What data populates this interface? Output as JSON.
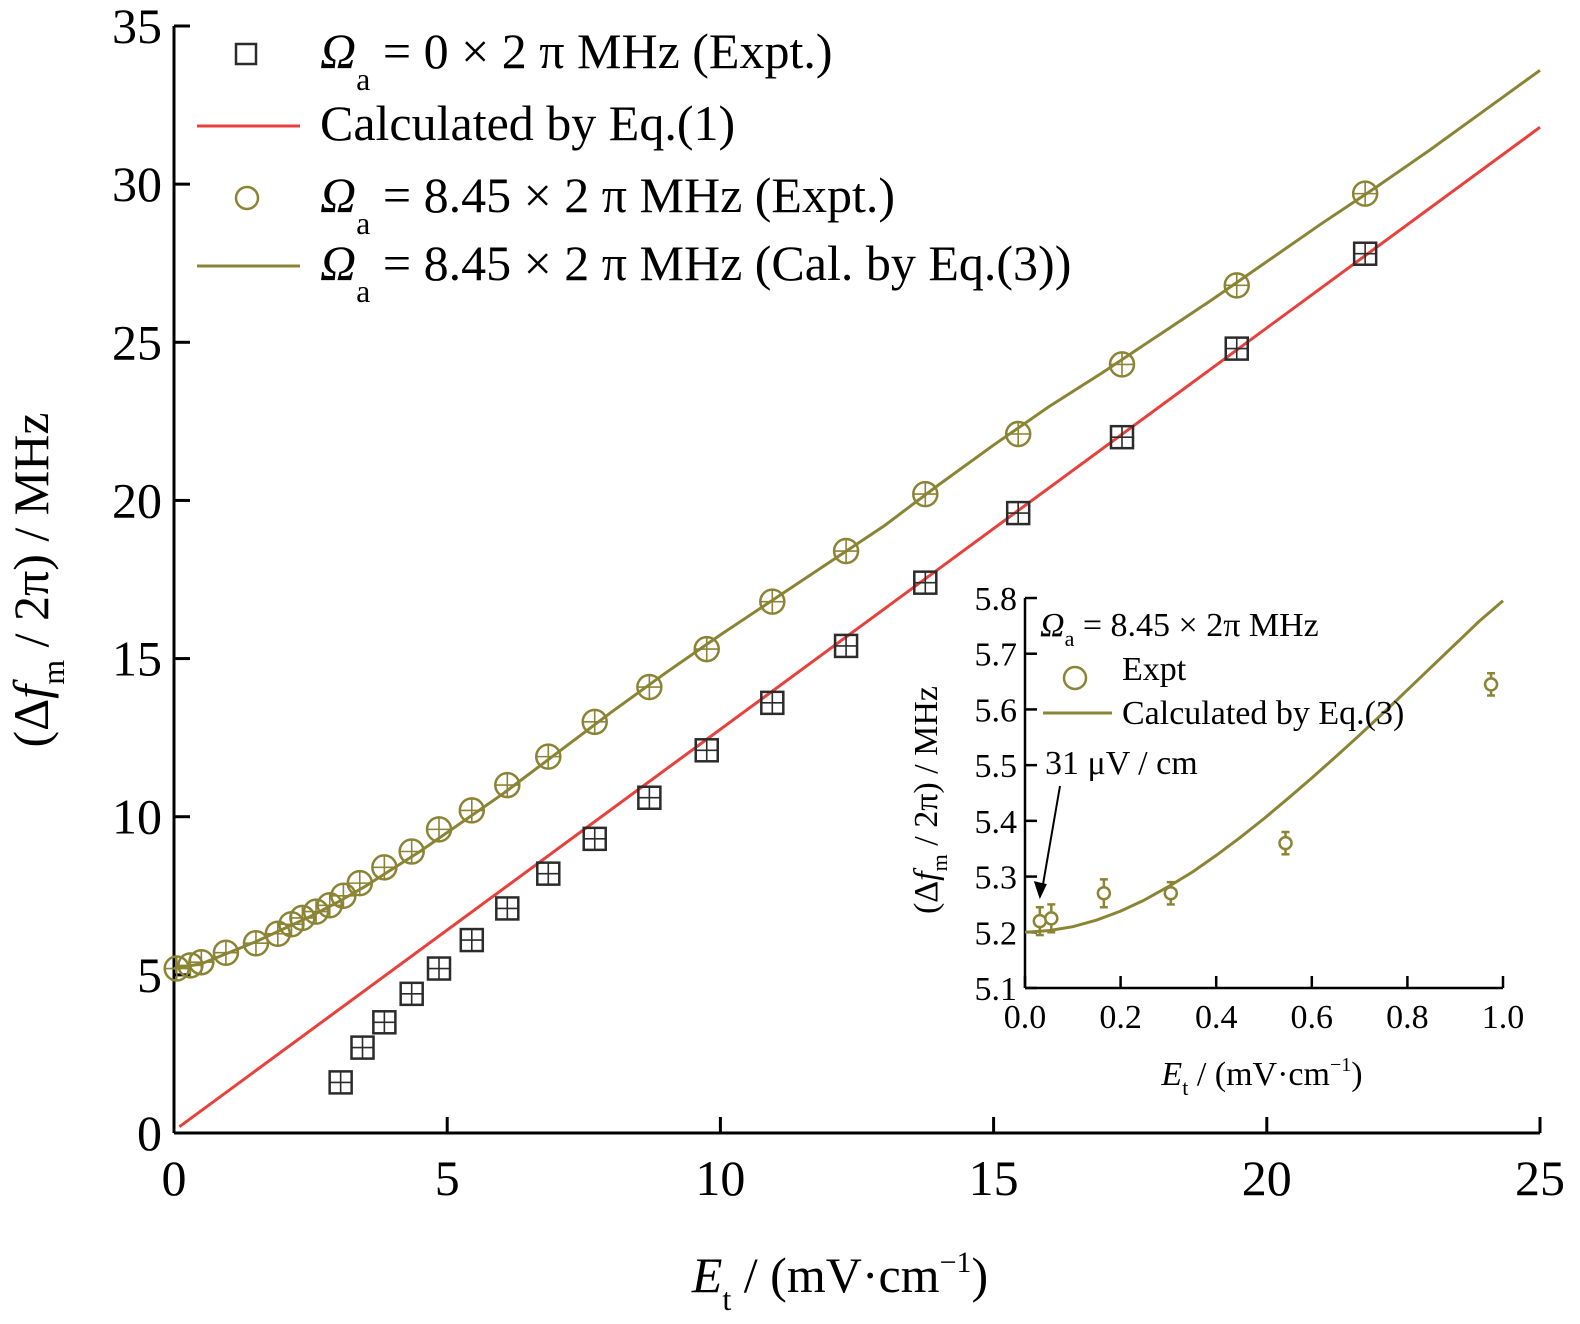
{
  "chart_data": [
    {
      "id": "main",
      "type": "scatter",
      "xlabel": {
        "var": "E",
        "sub": "t",
        "rest": " / (mV·cm",
        "sup": "−1",
        "close": ")"
      },
      "ylabel": {
        "pre": "(Δ",
        "var": "f",
        "sub": "m",
        "rest": " / 2π) / MHz"
      },
      "xlim": [
        0,
        25
      ],
      "ylim": [
        0,
        35
      ],
      "xticks": [
        0,
        5,
        10,
        15,
        20,
        25
      ],
      "yticks": [
        0,
        5,
        10,
        15,
        20,
        25,
        30,
        35
      ],
      "grid": false,
      "legend_position": "top-left",
      "colors": {
        "square": "#2b2b2b",
        "red": "#e8413c",
        "olive": "#8a8434"
      },
      "legend": [
        {
          "marker": "square",
          "greek": "Ω",
          "sub": "a",
          "text": " = 0 × 2 π MHz (Expt.)"
        },
        {
          "marker": "red-line",
          "greek": "",
          "sub": "",
          "text": "Calculated by Eq.(1)"
        },
        {
          "marker": "circle",
          "greek": "Ω",
          "sub": "a",
          "text": " = 8.45 × 2 π MHz (Expt.)"
        },
        {
          "marker": "olive-line",
          "greek": "Ω",
          "sub": "a",
          "text": " = 8.45 × 2 π MHz (Cal. by Eq.(3))"
        }
      ],
      "series": [
        {
          "name": "Ωa = 0 × 2 π MHz (Expt.)",
          "kind": "square",
          "x": [
            3.05,
            3.45,
            3.85,
            4.35,
            4.85,
            5.45,
            6.1,
            6.85,
            7.7,
            8.7,
            9.75,
            10.95,
            12.3,
            13.75,
            15.45,
            17.35,
            19.45,
            21.8
          ],
          "y": [
            1.6,
            2.7,
            3.5,
            4.4,
            5.2,
            6.1,
            7.1,
            8.2,
            9.3,
            10.6,
            12.1,
            13.6,
            15.4,
            17.4,
            19.6,
            22.0,
            24.8,
            27.8
          ]
        },
        {
          "name": "Calculated by Eq.(1)",
          "kind": "line",
          "x": [
            0.1,
            25.0
          ],
          "y": [
            0.2,
            31.8
          ]
        },
        {
          "name": "Ωa = 8.45 × 2 π MHz (Expt.)",
          "kind": "circle",
          "x": [
            0.05,
            0.3,
            0.5,
            0.95,
            1.5,
            1.9,
            2.15,
            2.35,
            2.6,
            2.85,
            3.1,
            3.4,
            3.85,
            4.35,
            4.85,
            5.45,
            6.1,
            6.85,
            7.7,
            8.7,
            9.75,
            10.95,
            12.3,
            13.75,
            15.45,
            17.35,
            19.45,
            21.8
          ],
          "y": [
            5.2,
            5.3,
            5.4,
            5.7,
            6.0,
            6.3,
            6.6,
            6.8,
            7.0,
            7.2,
            7.5,
            7.9,
            8.4,
            8.9,
            9.6,
            10.2,
            11.0,
            11.9,
            13.0,
            14.1,
            15.3,
            16.8,
            18.4,
            20.2,
            22.1,
            24.3,
            26.8,
            29.7
          ]
        },
        {
          "name": "Ωa = 8.45 × 2 π MHz (Cal. by Eq.(3))",
          "kind": "line",
          "x": [
            0,
            0.5,
            1,
            1.5,
            2,
            2.5,
            3,
            3.5,
            4,
            4.5,
            5,
            6,
            7,
            8,
            9,
            10,
            11,
            12,
            13,
            14,
            15,
            16,
            17,
            18,
            19,
            20,
            21,
            22,
            23,
            24,
            25
          ],
          "y": [
            5.2,
            5.35,
            5.7,
            6.05,
            6.45,
            6.85,
            7.3,
            7.8,
            8.35,
            8.9,
            9.5,
            10.7,
            12.0,
            13.3,
            14.55,
            15.75,
            16.9,
            18.05,
            19.2,
            20.5,
            21.75,
            22.95,
            24.05,
            25.2,
            26.35,
            27.55,
            28.75,
            29.9,
            31.1,
            32.35,
            33.6
          ]
        }
      ]
    },
    {
      "id": "inset",
      "type": "scatter",
      "xlabel": {
        "var": "E",
        "sub": "t",
        "rest": " / (mV·cm",
        "sup": "−1",
        "close": ")"
      },
      "ylabel": {
        "pre": "(Δ",
        "var": "f",
        "sub": "m",
        "rest": " / 2π) / MHz"
      },
      "xlim": [
        0.0,
        1.0
      ],
      "ylim": [
        5.1,
        5.8
      ],
      "xticks": [
        0.0,
        0.2,
        0.4,
        0.6,
        0.8,
        1.0
      ],
      "xtick_labels": [
        "0.0",
        "0.2",
        "0.4",
        "0.6",
        "0.8",
        "1.0"
      ],
      "yticks": [
        5.1,
        5.2,
        5.3,
        5.4,
        5.5,
        5.6,
        5.7,
        5.8
      ],
      "ytick_labels": [
        "5.1",
        "5.2",
        "5.3",
        "5.4",
        "5.5",
        "5.6",
        "5.7",
        "5.8"
      ],
      "grid": false,
      "legend_title": {
        "greek": "Ω",
        "sub": "a",
        "text": " = 8.45 × 2π MHz"
      },
      "legend": [
        {
          "marker": "circle",
          "text": "Expt"
        },
        {
          "marker": "olive-line",
          "text": "Calculated by Eq.(3)"
        }
      ],
      "annotation": {
        "text": "31 μV / cm",
        "x": 0.031,
        "y": 5.22
      },
      "series": [
        {
          "name": "Expt",
          "kind": "circle",
          "x": [
            0.031,
            0.055,
            0.165,
            0.305,
            0.545,
            0.975
          ],
          "y": [
            5.22,
            5.225,
            5.27,
            5.27,
            5.36,
            5.645
          ],
          "err": [
            0.025,
            0.025,
            0.025,
            0.02,
            0.02,
            0.02
          ]
        },
        {
          "name": "Calculated by Eq.(3)",
          "kind": "line",
          "x": [
            0.0,
            0.05,
            0.1,
            0.15,
            0.2,
            0.25,
            0.3,
            0.35,
            0.4,
            0.45,
            0.5,
            0.55,
            0.6,
            0.65,
            0.7,
            0.75,
            0.8,
            0.85,
            0.9,
            0.95,
            1.0
          ],
          "y": [
            5.2,
            5.203,
            5.21,
            5.222,
            5.238,
            5.258,
            5.282,
            5.308,
            5.338,
            5.37,
            5.404,
            5.44,
            5.477,
            5.515,
            5.554,
            5.594,
            5.635,
            5.676,
            5.717,
            5.758,
            5.795
          ]
        }
      ]
    }
  ]
}
